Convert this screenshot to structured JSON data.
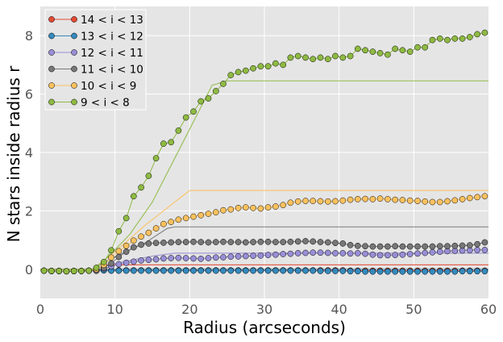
{
  "chart_data": {
    "type": "line",
    "title": "",
    "xlabel": "Radius (arcseconds)",
    "ylabel": "N stars inside radius r",
    "xlim": [
      0,
      60
    ],
    "ylim": [
      -1,
      9
    ],
    "xticks": [
      0,
      10,
      20,
      30,
      40,
      50,
      60
    ],
    "yticks": [
      0,
      2,
      4,
      6,
      8
    ],
    "grid": true,
    "legend_position": "top-left",
    "x": [
      0.5,
      1.5,
      2.5,
      3.5,
      4.5,
      5.5,
      6.5,
      7.5,
      8.5,
      9.5,
      10.5,
      11.5,
      12.5,
      13.5,
      14.5,
      15.5,
      16.5,
      17.5,
      18.5,
      19.5,
      20.5,
      21.5,
      22.5,
      23.5,
      24.5,
      25.5,
      26.5,
      27.5,
      28.5,
      29.5,
      30.5,
      31.5,
      32.5,
      33.5,
      34.5,
      35.5,
      36.5,
      37.5,
      38.5,
      39.5,
      40.5,
      41.5,
      42.5,
      43.5,
      44.5,
      45.5,
      46.5,
      47.5,
      48.5,
      49.5,
      50.5,
      51.5,
      52.5,
      53.5,
      54.5,
      55.5,
      56.5,
      57.5,
      58.5,
      59.5
    ],
    "series": [
      {
        "name": "14 < i < 13",
        "color": "#e24a33",
        "model_x": [
          0,
          7,
          9,
          60
        ],
        "model_y": [
          0,
          0,
          0.15,
          0.15
        ],
        "values": [
          -0.05,
          -0.06,
          -0.06,
          -0.07,
          -0.06,
          -0.06,
          -0.05,
          -0.05,
          -0.04,
          -0.04,
          -0.04,
          -0.04,
          -0.04,
          -0.04,
          -0.04,
          -0.04,
          -0.04,
          -0.04,
          -0.04,
          -0.04,
          -0.04,
          -0.04,
          -0.04,
          -0.04,
          -0.04,
          -0.04,
          -0.04,
          -0.04,
          -0.04,
          -0.04,
          -0.04,
          -0.04,
          -0.04,
          -0.04,
          -0.04,
          -0.04,
          -0.04,
          -0.04,
          -0.04,
          -0.04,
          -0.04,
          -0.05,
          -0.05,
          -0.05,
          -0.05,
          -0.05,
          -0.05,
          -0.05,
          -0.05,
          -0.05,
          -0.05,
          -0.05,
          -0.05,
          -0.05,
          -0.05,
          -0.05,
          -0.05,
          -0.05,
          -0.05,
          -0.05
        ]
      },
      {
        "name": "13 < i < 12",
        "color": "#348abd",
        "model_x": [
          0,
          60
        ],
        "model_y": [
          0,
          0
        ],
        "values": [
          -0.05,
          -0.06,
          -0.06,
          -0.07,
          -0.06,
          -0.06,
          -0.05,
          -0.05,
          -0.04,
          -0.05,
          -0.05,
          -0.05,
          -0.05,
          -0.05,
          -0.05,
          -0.05,
          -0.05,
          -0.05,
          -0.05,
          -0.05,
          -0.05,
          -0.05,
          -0.05,
          -0.05,
          -0.05,
          -0.05,
          -0.05,
          -0.05,
          -0.05,
          -0.05,
          -0.05,
          -0.05,
          -0.05,
          -0.05,
          -0.05,
          -0.05,
          -0.05,
          -0.06,
          -0.06,
          -0.06,
          -0.06,
          -0.07,
          -0.07,
          -0.08,
          -0.08,
          -0.08,
          -0.08,
          -0.08,
          -0.08,
          -0.08,
          -0.08,
          -0.08,
          -0.08,
          -0.08,
          -0.08,
          -0.08,
          -0.07,
          -0.07,
          -0.07,
          -0.07
        ]
      },
      {
        "name": "12 < i < 11",
        "color": "#988ed5",
        "model_x": [
          0,
          7,
          10,
          15,
          18,
          60
        ],
        "model_y": [
          0,
          0,
          0.2,
          0.45,
          0.55,
          0.55
        ],
        "values": [
          -0.05,
          -0.06,
          -0.06,
          -0.07,
          -0.06,
          -0.06,
          -0.05,
          -0.05,
          0.02,
          0.1,
          0.17,
          0.22,
          0.26,
          0.3,
          0.32,
          0.34,
          0.37,
          0.38,
          0.39,
          0.38,
          0.37,
          0.36,
          0.38,
          0.4,
          0.41,
          0.43,
          0.44,
          0.45,
          0.46,
          0.47,
          0.49,
          0.5,
          0.52,
          0.53,
          0.55,
          0.56,
          0.57,
          0.57,
          0.56,
          0.55,
          0.55,
          0.54,
          0.55,
          0.53,
          0.5,
          0.48,
          0.48,
          0.49,
          0.5,
          0.52,
          0.54,
          0.56,
          0.58,
          0.6,
          0.62,
          0.63,
          0.64,
          0.65,
          0.66,
          0.66
        ]
      },
      {
        "name": "11 < i < 10",
        "color": "#777777",
        "model_x": [
          0,
          7,
          9,
          14,
          17,
          18,
          60
        ],
        "model_y": [
          0,
          0,
          0.3,
          0.9,
          1.4,
          1.45,
          1.45
        ],
        "values": [
          -0.05,
          -0.06,
          -0.06,
          -0.07,
          -0.06,
          -0.06,
          -0.05,
          -0.05,
          0.05,
          0.2,
          0.42,
          0.6,
          0.75,
          0.84,
          0.88,
          0.9,
          0.91,
          0.92,
          0.93,
          0.93,
          0.94,
          0.93,
          0.92,
          0.93,
          0.94,
          0.93,
          0.93,
          0.92,
          0.93,
          0.94,
          0.94,
          0.93,
          0.93,
          0.94,
          0.95,
          0.96,
          0.95,
          0.93,
          0.92,
          0.9,
          0.88,
          0.83,
          0.8,
          0.79,
          0.78,
          0.78,
          0.78,
          0.79,
          0.78,
          0.78,
          0.78,
          0.78,
          0.78,
          0.79,
          0.79,
          0.8,
          0.81,
          0.82,
          0.86,
          0.92
        ]
      },
      {
        "name": "10 < i < 9",
        "color": "#fbc15e",
        "model_x": [
          0,
          7,
          10,
          14,
          18,
          20,
          60
        ],
        "model_y": [
          0,
          0,
          0.6,
          1.5,
          2.3,
          2.7,
          2.7
        ],
        "values": [
          -0.05,
          -0.06,
          -0.06,
          -0.07,
          -0.06,
          -0.06,
          -0.05,
          0,
          0.15,
          0.4,
          0.62,
          0.8,
          0.98,
          1.12,
          1.25,
          1.4,
          1.55,
          1.62,
          1.7,
          1.75,
          1.8,
          1.85,
          1.9,
          1.95,
          2.02,
          2.05,
          2.1,
          2.12,
          2.1,
          2.08,
          2.12,
          2.15,
          2.2,
          2.28,
          2.32,
          2.34,
          2.34,
          2.33,
          2.32,
          2.33,
          2.35,
          2.38,
          2.4,
          2.41,
          2.4,
          2.42,
          2.4,
          2.38,
          2.37,
          2.35,
          2.34,
          2.32,
          2.3,
          2.3,
          2.33,
          2.36,
          2.4,
          2.44,
          2.47,
          2.5
        ]
      },
      {
        "name": "9 < i < 8",
        "color": "#8eba42",
        "model_x": [
          0,
          7,
          9,
          12,
          15,
          18,
          21,
          23,
          25,
          26,
          60
        ],
        "model_y": [
          0,
          0,
          0.4,
          1.2,
          2.3,
          3.8,
          5.3,
          6.3,
          6.45,
          6.45,
          6.45
        ],
        "values": [
          -0.05,
          -0.06,
          -0.06,
          -0.07,
          -0.06,
          -0.06,
          -0.05,
          0.05,
          0.25,
          0.65,
          1.3,
          1.75,
          2.5,
          2.8,
          3.2,
          3.8,
          4.3,
          4.35,
          4.75,
          5.2,
          5.4,
          5.75,
          5.85,
          6.1,
          6.35,
          6.65,
          6.75,
          6.8,
          6.88,
          6.95,
          6.95,
          7.05,
          7.0,
          7.25,
          7.3,
          7.25,
          7.2,
          7.25,
          7.2,
          7.3,
          7.25,
          7.3,
          7.55,
          7.5,
          7.45,
          7.4,
          7.35,
          7.55,
          7.5,
          7.45,
          7.6,
          7.6,
          7.85,
          7.9,
          7.85,
          7.9,
          7.9,
          7.95,
          8.05,
          8.1
        ]
      }
    ]
  }
}
